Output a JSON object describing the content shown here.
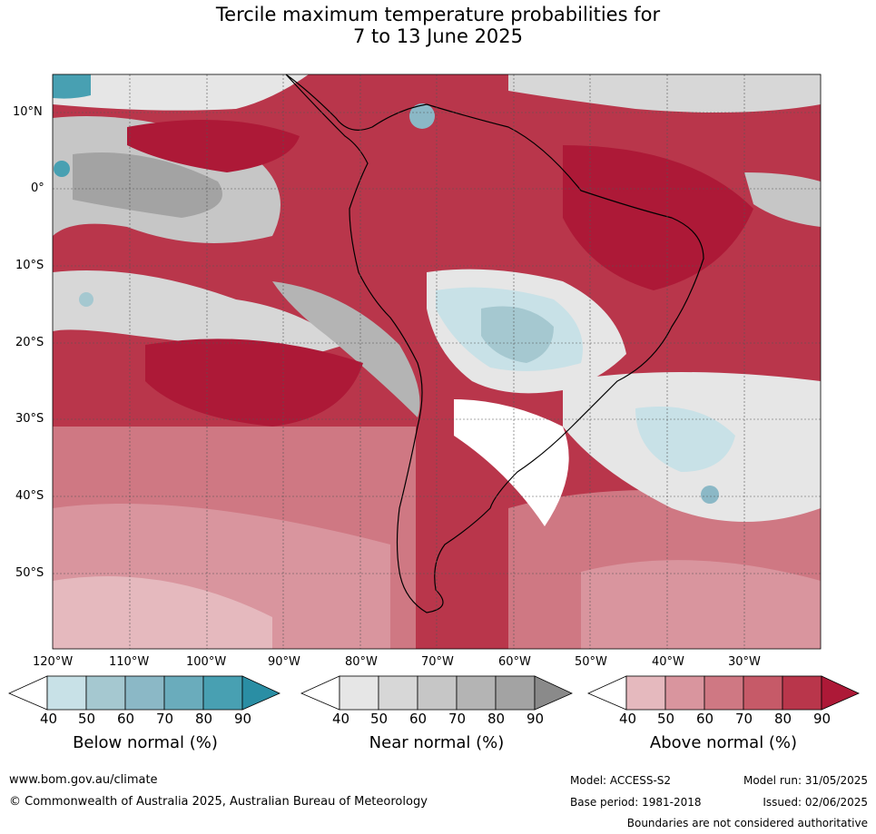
{
  "title_line1": "Tercile maximum temperature probabilities for",
  "title_line2": "7 to 13 June 2025",
  "lat_ticks": [
    "10°N",
    "0°",
    "10°S",
    "20°S",
    "30°S",
    "40°S",
    "50°S"
  ],
  "lon_ticks": [
    "120°W",
    "110°W",
    "100°W",
    "90°W",
    "80°W",
    "70°W",
    "60°W",
    "50°W",
    "40°W",
    "30°W"
  ],
  "colorbars": [
    {
      "label": "Below normal (%)",
      "ticks": [
        "40",
        "50",
        "60",
        "70",
        "80",
        "90"
      ],
      "colors": [
        "#ffffff",
        "#c8e1e7",
        "#a5c8d0",
        "#8bb8c6",
        "#6aacbc",
        "#48a0b2",
        "#2a8ea4"
      ]
    },
    {
      "label": "Near normal (%)",
      "ticks": [
        "40",
        "50",
        "60",
        "70",
        "80",
        "90"
      ],
      "colors": [
        "#ffffff",
        "#e6e6e6",
        "#d7d7d7",
        "#c6c6c6",
        "#b4b4b4",
        "#a3a3a3",
        "#8a8a8a"
      ]
    },
    {
      "label": "Above normal (%)",
      "ticks": [
        "40",
        "50",
        "60",
        "70",
        "80",
        "90"
      ],
      "colors": [
        "#ffffff",
        "#e5b9be",
        "#d9959e",
        "#cf7883",
        "#c65a68",
        "#b9364b",
        "#ad1937"
      ]
    }
  ],
  "footer": {
    "website": "www.bom.gov.au/climate",
    "copyright": "© Commonwealth of Australia 2025, Australian Bureau of Meteorology",
    "model": "Model: ACCESS-S2",
    "base_period": "Base period: 1981-2018",
    "model_run": "Model run: 31/05/2025",
    "issued": "Issued: 02/06/2025",
    "disclaimer": "Boundaries are not considered authoritative"
  }
}
